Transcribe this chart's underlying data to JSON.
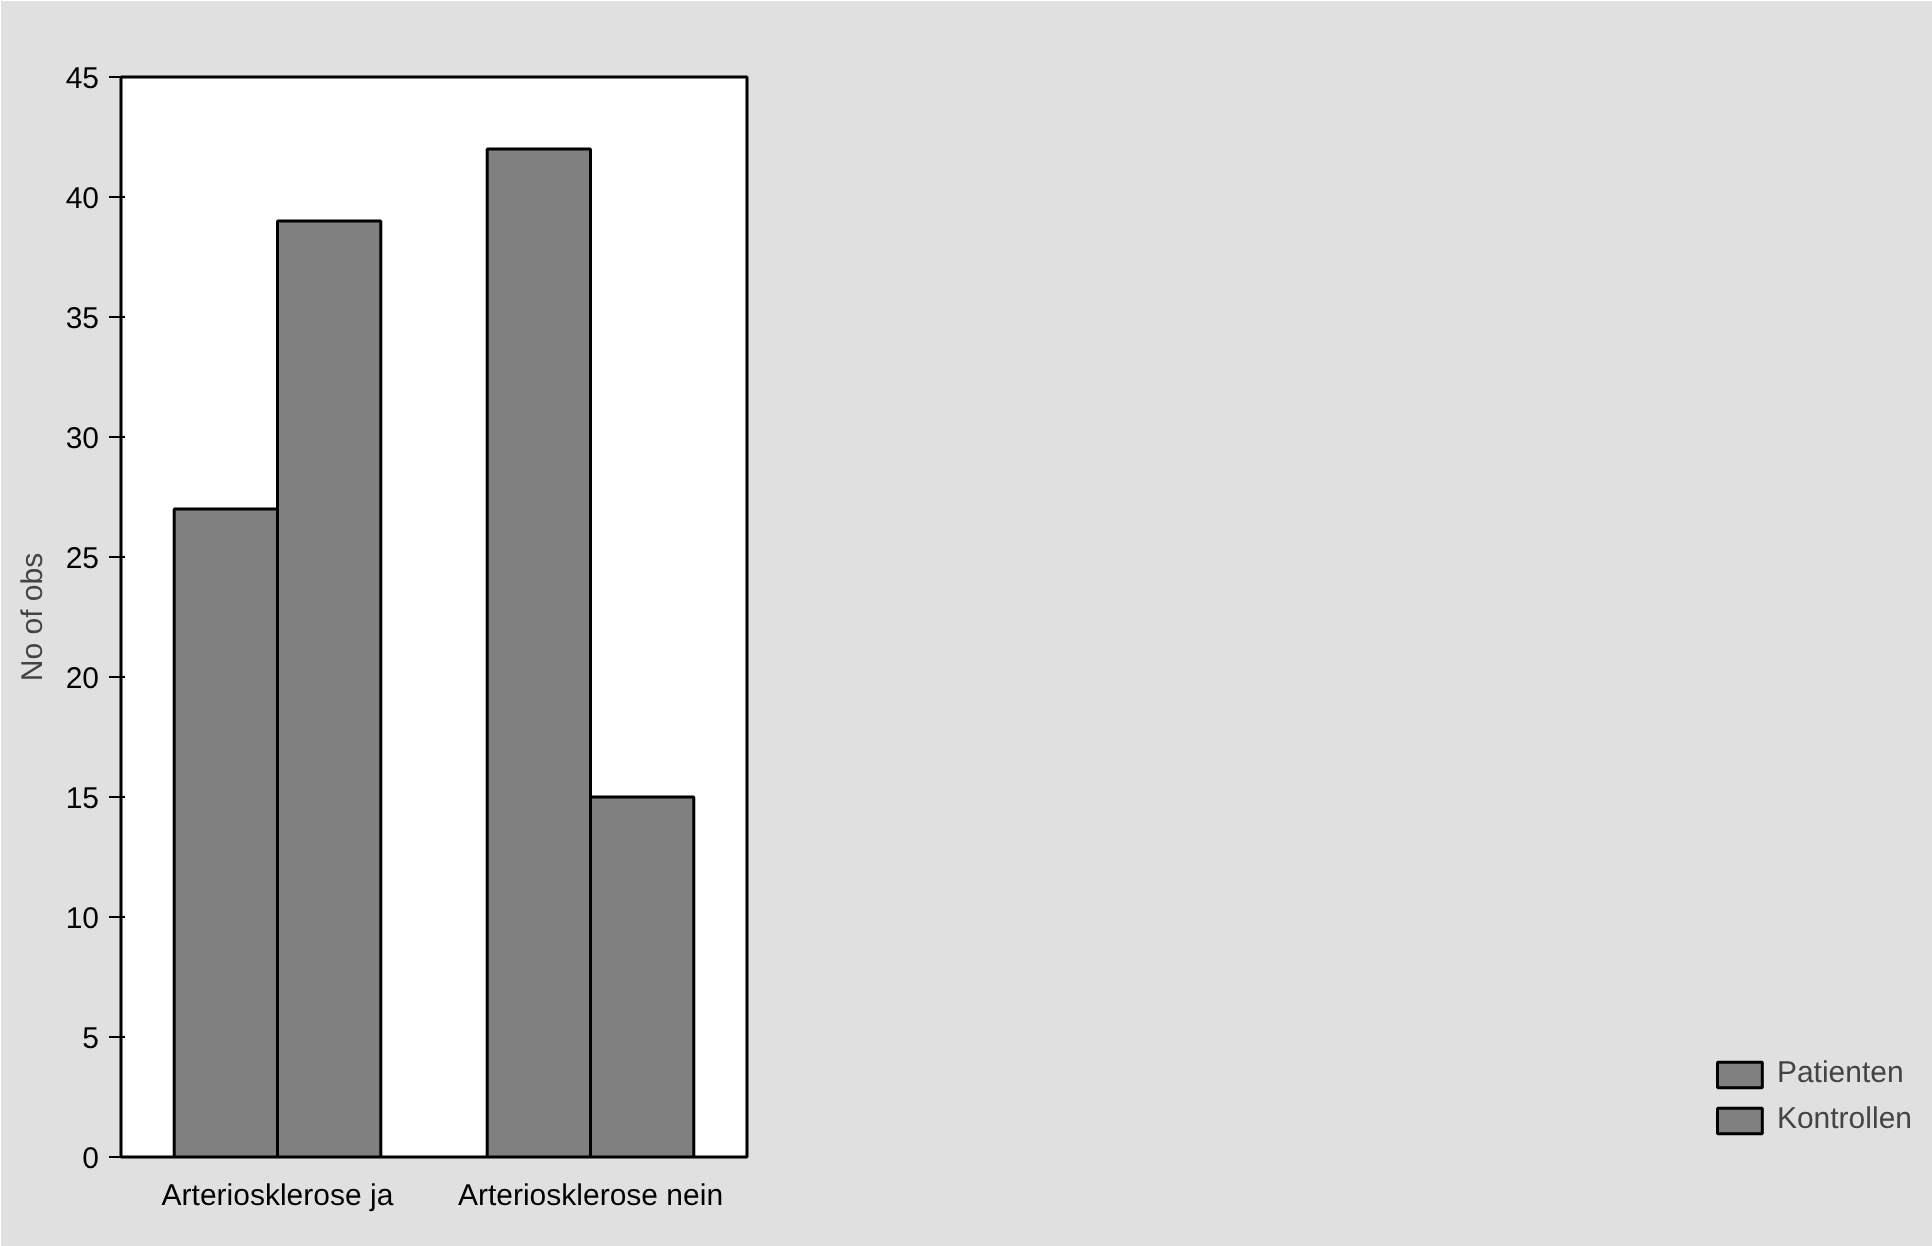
{
  "chart_data": {
    "type": "bar",
    "ylabel": "No of obs",
    "categories": [
      "Arteriosklerose ja",
      "Arteriosklerose nein"
    ],
    "series": [
      {
        "name": "Patienten",
        "color": "#808080",
        "values": [
          27,
          42
        ]
      },
      {
        "name": "Kontrollen",
        "color": "#808080",
        "values": [
          39,
          15
        ]
      }
    ],
    "ylim": [
      0,
      45
    ],
    "yticks": [
      0,
      5,
      10,
      15,
      20,
      25,
      30,
      35,
      40,
      45
    ],
    "grid": false,
    "legend": "bottom right"
  }
}
